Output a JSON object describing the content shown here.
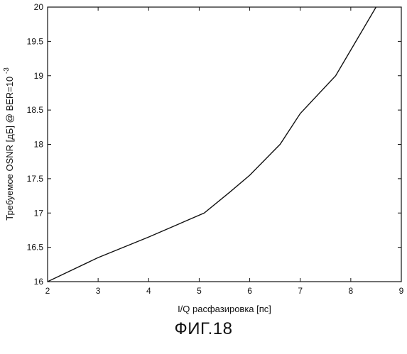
{
  "chart_data": {
    "type": "line",
    "title": "",
    "xlabel": "I/Q расфазировка [пс]",
    "ylabel": "Требуемое OSNR [дБ] @ BER=10",
    "ylabel_superscript": "-3",
    "xlim": [
      2,
      9
    ],
    "ylim": [
      16,
      20
    ],
    "xticks": [
      2,
      3,
      4,
      5,
      6,
      7,
      8,
      9
    ],
    "yticks": [
      16,
      16.5,
      17,
      17.5,
      18,
      18.5,
      19,
      19.5,
      20
    ],
    "grid": false,
    "legend": "none",
    "line_color": "#111111",
    "series": [
      {
        "x": [
          2.0,
          3.0,
          4.0,
          5.1,
          5.6,
          6.0,
          6.6,
          7.0,
          7.7,
          8.1,
          8.5
        ],
        "y": [
          16.0,
          16.35,
          16.65,
          17.0,
          17.3,
          17.55,
          18.0,
          18.45,
          19.0,
          19.5,
          20.0
        ]
      }
    ]
  },
  "caption": "ФИГ.18"
}
